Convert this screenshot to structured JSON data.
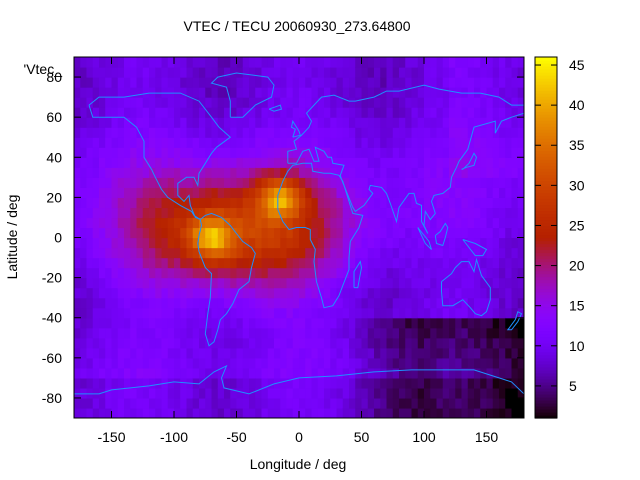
{
  "chart_data": {
    "type": "heatmap",
    "title": "VTEC / TECU 20060930_273.64800",
    "xlabel": "Longitude / deg",
    "ylabel": "Latitude / deg",
    "series_label": "'Vtec_",
    "xlim": [
      -180,
      180
    ],
    "ylim": [
      -90,
      90
    ],
    "x_ticks": [
      -150,
      -100,
      -50,
      0,
      50,
      100,
      150
    ],
    "y_ticks": [
      -80,
      -60,
      -40,
      -20,
      0,
      20,
      40,
      60,
      80
    ],
    "colorbar": {
      "min": 1,
      "max": 46,
      "ticks": [
        5,
        10,
        15,
        20,
        25,
        30,
        35,
        40,
        45
      ]
    },
    "peaks": [
      {
        "lon": -15,
        "lat": 20,
        "value": 45
      },
      {
        "lon": -70,
        "lat": 0,
        "value": 44
      }
    ],
    "overlay": "coastlines"
  },
  "colors": {
    "coastline": "#1e90ff",
    "background_field": "#6a0dd0"
  }
}
